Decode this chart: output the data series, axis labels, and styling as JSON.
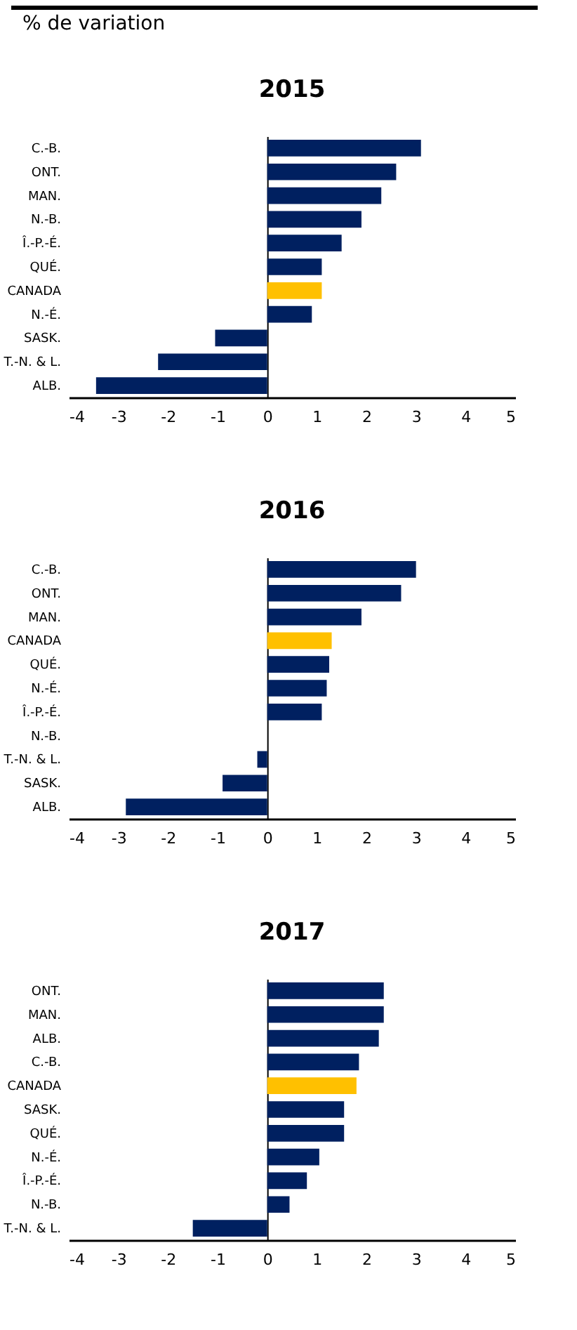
{
  "chart_data": [
    {
      "type": "bar",
      "orientation": "horizontal",
      "title": "2015",
      "annotations": [
        "% de variation"
      ],
      "categories": [
        "C.-B.",
        "ONT.",
        "MAN.",
        "N.-B.",
        "Î.-P.-É.",
        "QUÉ.",
        "CANADA",
        "N.-É.",
        "SASK.",
        "T.-N. & L.",
        "ALB."
      ],
      "values": [
        3.1,
        2.6,
        2.3,
        1.9,
        1.5,
        1.1,
        1.1,
        0.9,
        -1.05,
        -2.2,
        -3.45
      ],
      "colors": [
        "#002060",
        "#002060",
        "#002060",
        "#002060",
        "#002060",
        "#002060",
        "#ffc000",
        "#002060",
        "#002060",
        "#002060",
        "#002060"
      ],
      "xlim": [
        -4,
        5
      ],
      "xticks": [
        -4,
        -3,
        -2,
        -1,
        0,
        1,
        2,
        3,
        4,
        5
      ]
    },
    {
      "type": "bar",
      "orientation": "horizontal",
      "title": "2016",
      "categories": [
        "C.-B.",
        "ONT.",
        "MAN.",
        "CANADA",
        "QUÉ.",
        "N.-É.",
        "Î.-P.-É.",
        "N.-B.",
        "T.-N. & L.",
        "SASK.",
        "ALB."
      ],
      "values": [
        3.0,
        2.7,
        1.9,
        1.3,
        1.25,
        1.2,
        1.1,
        0,
        -0.2,
        -0.9,
        -2.85
      ],
      "colors": [
        "#002060",
        "#002060",
        "#002060",
        "#ffc000",
        "#002060",
        "#002060",
        "#002060",
        "#002060",
        "#002060",
        "#002060",
        "#002060"
      ],
      "xlim": [
        -4,
        5
      ],
      "xticks": [
        -4,
        -3,
        -2,
        -1,
        0,
        1,
        2,
        3,
        4,
        5
      ]
    },
    {
      "type": "bar",
      "orientation": "horizontal",
      "title": "2017",
      "categories": [
        "ONT.",
        "MAN.",
        "ALB.",
        "C.-B.",
        "CANADA",
        "SASK.",
        "QUÉ.",
        "N.-É.",
        "Î.-P.-É.",
        "N.-B.",
        "T.-N. & L."
      ],
      "values": [
        2.35,
        2.35,
        2.25,
        1.85,
        1.8,
        1.55,
        1.55,
        1.05,
        0.8,
        0.45,
        -1.5
      ],
      "colors": [
        "#002060",
        "#002060",
        "#002060",
        "#002060",
        "#ffc000",
        "#002060",
        "#002060",
        "#002060",
        "#002060",
        "#002060",
        "#002060"
      ],
      "xlim": [
        -4,
        5
      ],
      "xticks": [
        -4,
        -3,
        -2,
        -1,
        0,
        1,
        2,
        3,
        4,
        5
      ]
    }
  ]
}
